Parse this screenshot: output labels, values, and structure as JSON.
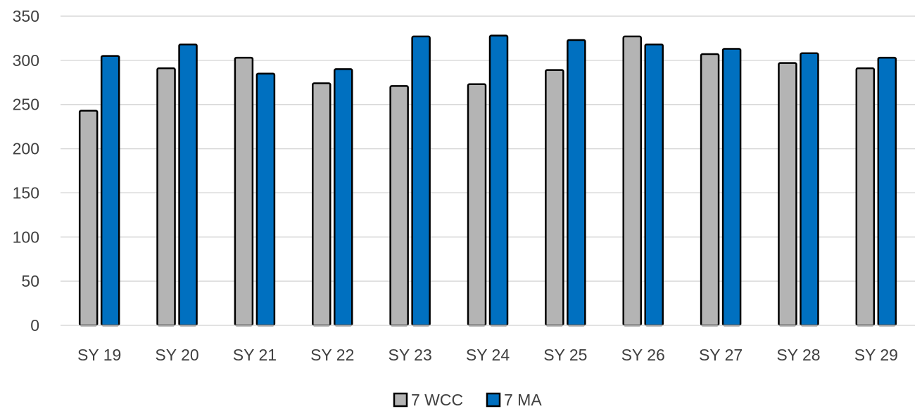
{
  "chart_data": {
    "type": "bar",
    "title": "",
    "xlabel": "",
    "ylabel": "",
    "categories": [
      "SY 19",
      "SY 20",
      "SY 21",
      "SY 22",
      "SY 23",
      "SY 24",
      "SY 25",
      "SY 26",
      "SY 27",
      "SY 28",
      "SY 29"
    ],
    "series": [
      {
        "name": "7 WCC",
        "color": "#b4b4b4",
        "values": [
          243,
          291,
          303,
          274,
          271,
          273,
          289,
          327,
          307,
          297,
          291
        ]
      },
      {
        "name": "7 MA",
        "color": "#0070c0",
        "values": [
          305,
          318,
          285,
          290,
          327,
          328,
          323,
          318,
          313,
          308,
          303
        ]
      }
    ],
    "ylim": [
      0,
      350
    ],
    "yticks": [
      "0",
      "50",
      "100",
      "150",
      "200",
      "250",
      "300",
      "350"
    ],
    "grid": true,
    "legend_position": "bottom-center"
  }
}
